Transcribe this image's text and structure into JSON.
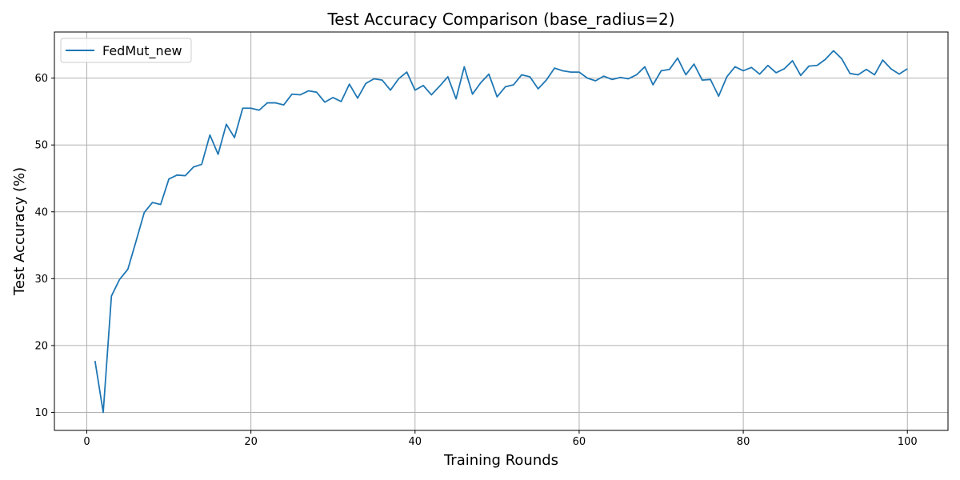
{
  "chart_data": {
    "type": "line",
    "title": "Test Accuracy Comparison (base_radius=2)",
    "xlabel": "Training Rounds",
    "ylabel": "Test Accuracy (%)",
    "xlim": [
      -3.95,
      104.95
    ],
    "ylim": [
      7.3,
      66.9
    ],
    "xticks": [
      0,
      20,
      40,
      60,
      80,
      100
    ],
    "yticks": [
      10,
      20,
      30,
      40,
      50,
      60
    ],
    "grid": true,
    "legend_position": "top-left",
    "series": [
      {
        "name": "FedMut_new",
        "color": "#1f77b4",
        "x": [
          1,
          2,
          3,
          4,
          5,
          6,
          7,
          8,
          9,
          10,
          11,
          12,
          13,
          14,
          15,
          16,
          17,
          18,
          19,
          20,
          21,
          22,
          23,
          24,
          25,
          26,
          27,
          28,
          29,
          30,
          31,
          32,
          33,
          34,
          35,
          36,
          37,
          38,
          39,
          40,
          41,
          42,
          43,
          44,
          45,
          46,
          47,
          48,
          49,
          50,
          51,
          52,
          53,
          54,
          55,
          56,
          57,
          58,
          59,
          60,
          61,
          62,
          63,
          64,
          65,
          66,
          67,
          68,
          69,
          70,
          71,
          72,
          73,
          74,
          75,
          76,
          77,
          78,
          79,
          80,
          81,
          82,
          83,
          84,
          85,
          86,
          87,
          88,
          89,
          90,
          91,
          92,
          93,
          94,
          95,
          96,
          97,
          98,
          99,
          100
        ],
        "values": [
          17.7,
          10.0,
          27.4,
          29.9,
          31.4,
          35.6,
          39.9,
          41.4,
          41.1,
          44.9,
          45.5,
          45.4,
          46.7,
          47.1,
          51.5,
          48.6,
          53.1,
          51.1,
          55.5,
          55.5,
          55.2,
          56.3,
          56.3,
          56.0,
          57.6,
          57.5,
          58.1,
          57.9,
          56.4,
          57.1,
          56.5,
          59.1,
          57.0,
          59.2,
          59.9,
          59.7,
          58.2,
          59.9,
          60.9,
          58.2,
          58.9,
          57.5,
          58.8,
          60.2,
          56.9,
          61.7,
          57.6,
          59.3,
          60.6,
          57.2,
          58.7,
          59.0,
          60.5,
          60.2,
          58.4,
          59.7,
          61.5,
          61.1,
          60.9,
          60.9,
          60.0,
          59.6,
          60.3,
          59.8,
          60.1,
          59.9,
          60.5,
          61.7,
          59.0,
          61.1,
          61.3,
          63.0,
          60.5,
          62.1,
          59.7,
          59.8,
          57.3,
          60.2,
          61.7,
          61.1,
          61.6,
          60.6,
          61.9,
          60.8,
          61.4,
          62.6,
          60.4,
          61.8,
          61.9,
          62.8,
          64.1,
          62.9,
          60.7,
          60.5,
          61.3,
          60.5,
          62.7,
          61.4,
          60.6,
          61.4
        ]
      }
    ]
  }
}
